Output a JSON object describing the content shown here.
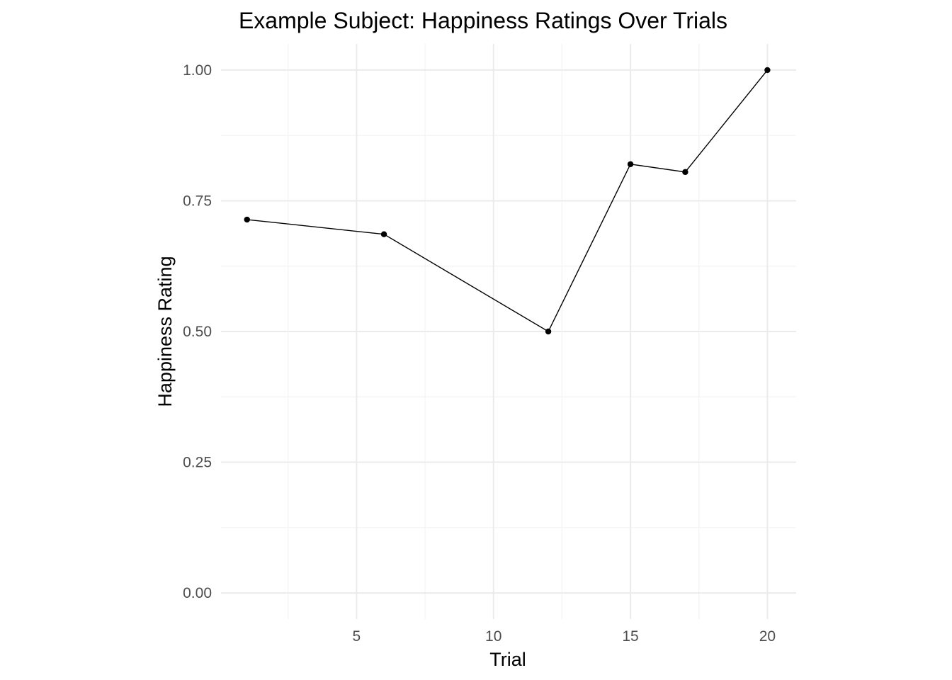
{
  "chart_data": {
    "type": "line",
    "title": "Example Subject: Happiness Ratings Over Trials",
    "xlabel": "Trial",
    "ylabel": "Happiness Rating",
    "xlim": [
      0.05,
      21.05
    ],
    "ylim": [
      -0.05,
      1.05
    ],
    "x_ticks": [
      5,
      10,
      15,
      20
    ],
    "x_tick_labels": [
      "5",
      "10",
      "15",
      "20"
    ],
    "x_minor_ticks": [
      2.5,
      7.5,
      12.5,
      17.5
    ],
    "y_ticks": [
      0,
      0.25,
      0.5,
      0.75,
      1
    ],
    "y_tick_labels": [
      "0.00",
      "0.25",
      "0.50",
      "0.75",
      "1.00"
    ],
    "y_minor_ticks": [
      0.125,
      0.375,
      0.625,
      0.875
    ],
    "grid": true,
    "series": [
      {
        "x": [
          1,
          6,
          12,
          15,
          17,
          20
        ],
        "y": [
          0.714,
          0.686,
          0.5,
          0.82,
          0.805,
          1.0
        ]
      }
    ],
    "colors": {
      "line": "#000000",
      "grid": "#ebebeb",
      "tick_text": "#4d4d4d"
    }
  }
}
